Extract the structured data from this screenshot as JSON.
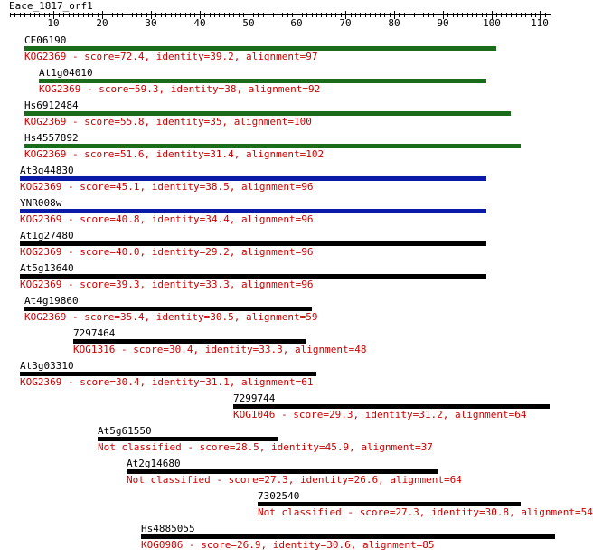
{
  "query": {
    "title": "Eace_1817_orf1"
  },
  "axis": {
    "min": 1,
    "max": 111,
    "major_ticks": [
      10,
      20,
      30,
      40,
      50,
      60,
      70,
      80,
      90,
      100,
      110
    ],
    "tick_labels": [
      "10",
      "20",
      "30",
      "40",
      "50",
      "60",
      "70",
      "80",
      "90",
      "100",
      "110"
    ]
  },
  "colors": {
    "text": "#000000",
    "description": "#cc0000",
    "bar_green": "#1a6b1a",
    "bar_blue": "#0a1aa8",
    "bar_black": "#000000"
  },
  "hits": [
    {
      "name": "CE06190",
      "start": 4,
      "end": 101,
      "color": "bar_green",
      "description": "KOG2369 - score=72.4, identity=39.2, alignment=97"
    },
    {
      "name": "At1g04010",
      "start": 7,
      "end": 99,
      "color": "bar_green",
      "description": "KOG2369 - score=59.3, identity=38, alignment=92"
    },
    {
      "name": "Hs6912484",
      "start": 4,
      "end": 104,
      "color": "bar_green",
      "description": "KOG2369 - score=55.8, identity=35, alignment=100"
    },
    {
      "name": "Hs4557892",
      "start": 4,
      "end": 106,
      "color": "bar_green",
      "description": "KOG2369 - score=51.6, identity=31.4, alignment=102"
    },
    {
      "name": "At3g44830",
      "start": 3,
      "end": 99,
      "color": "bar_blue",
      "description": "KOG2369 - score=45.1, identity=38.5, alignment=96"
    },
    {
      "name": "YNR008w",
      "start": 3,
      "end": 99,
      "color": "bar_blue",
      "description": "KOG2369 - score=40.8, identity=34.4, alignment=96"
    },
    {
      "name": "At1g27480",
      "start": 3,
      "end": 99,
      "color": "bar_black",
      "description": "KOG2369 - score=40.0, identity=29.2, alignment=96"
    },
    {
      "name": "At5g13640",
      "start": 3,
      "end": 99,
      "color": "bar_black",
      "description": "KOG2369 - score=39.3, identity=33.3, alignment=96"
    },
    {
      "name": "At4g19860",
      "start": 4,
      "end": 63,
      "color": "bar_black",
      "description": "KOG2369 - score=35.4, identity=30.5, alignment=59"
    },
    {
      "name": "7297464",
      "start": 14,
      "end": 62,
      "color": "bar_black",
      "description": "KOG1316 - score=30.4, identity=33.3, alignment=48"
    },
    {
      "name": "At3g03310",
      "start": 3,
      "end": 64,
      "color": "bar_black",
      "description": "KOG2369 - score=30.4, identity=31.1, alignment=61"
    },
    {
      "name": "7299744",
      "start": 47,
      "end": 112,
      "color": "bar_black",
      "description": "KOG1046 - score=29.3, identity=31.2, alignment=64"
    },
    {
      "name": "At5g61550",
      "start": 19,
      "end": 56,
      "color": "bar_black",
      "description": "Not classified - score=28.5, identity=45.9, alignment=37"
    },
    {
      "name": "At2g14680",
      "start": 25,
      "end": 89,
      "color": "bar_black",
      "description": "Not classified - score=27.3, identity=26.6, alignment=64"
    },
    {
      "name": "7302540",
      "start": 52,
      "end": 106,
      "color": "bar_black",
      "description": "Not classified - score=27.3, identity=30.8, alignment=54"
    },
    {
      "name": "Hs4885055",
      "start": 28,
      "end": 113,
      "color": "bar_black",
      "description": "KOG0986 - score=26.9, identity=30.6, alignment=85"
    }
  ]
}
